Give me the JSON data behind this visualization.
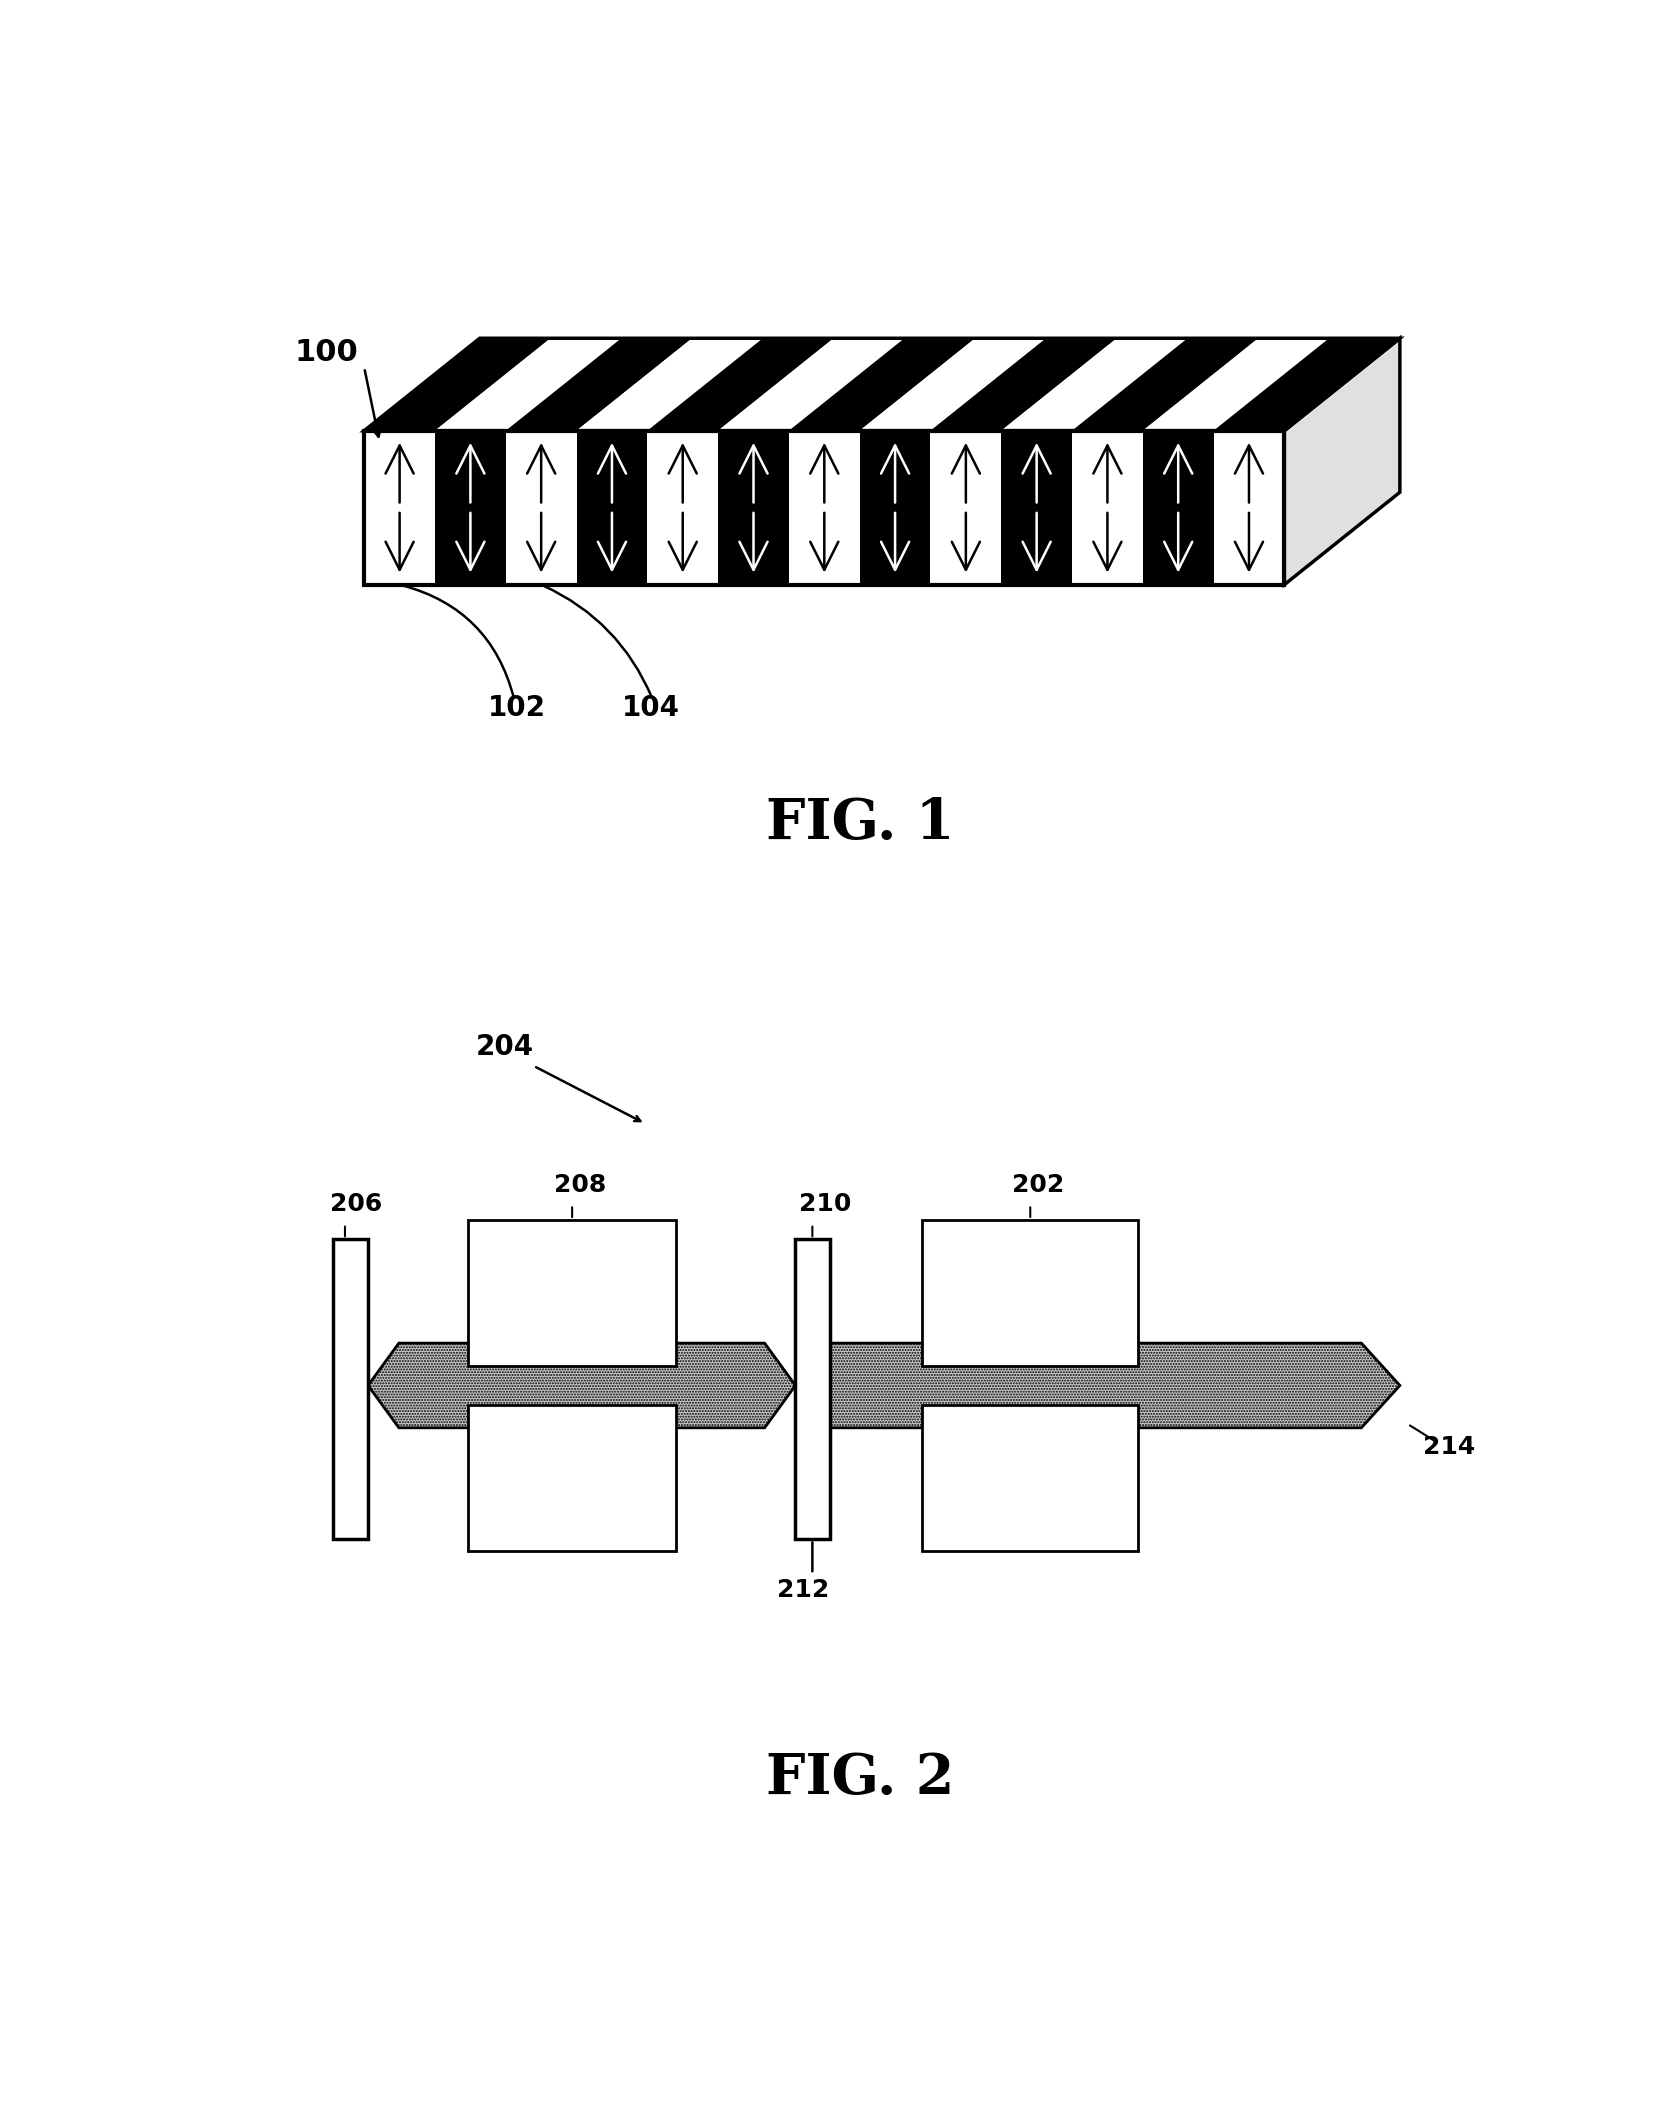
{
  "fig1_label": "FIG. 1",
  "fig2_label": "FIG. 2",
  "label_100": "100",
  "label_102": "102",
  "label_104": "104",
  "label_204": "204",
  "label_206": "206",
  "label_208": "208",
  "label_210": "210",
  "label_202": "202",
  "label_212": "212",
  "label_214": "214",
  "bg_color": "#ffffff",
  "n_stripes": 13,
  "fig_label_fontsize": 40,
  "label_fontsize": 22,
  "annotation_fontsize": 20
}
